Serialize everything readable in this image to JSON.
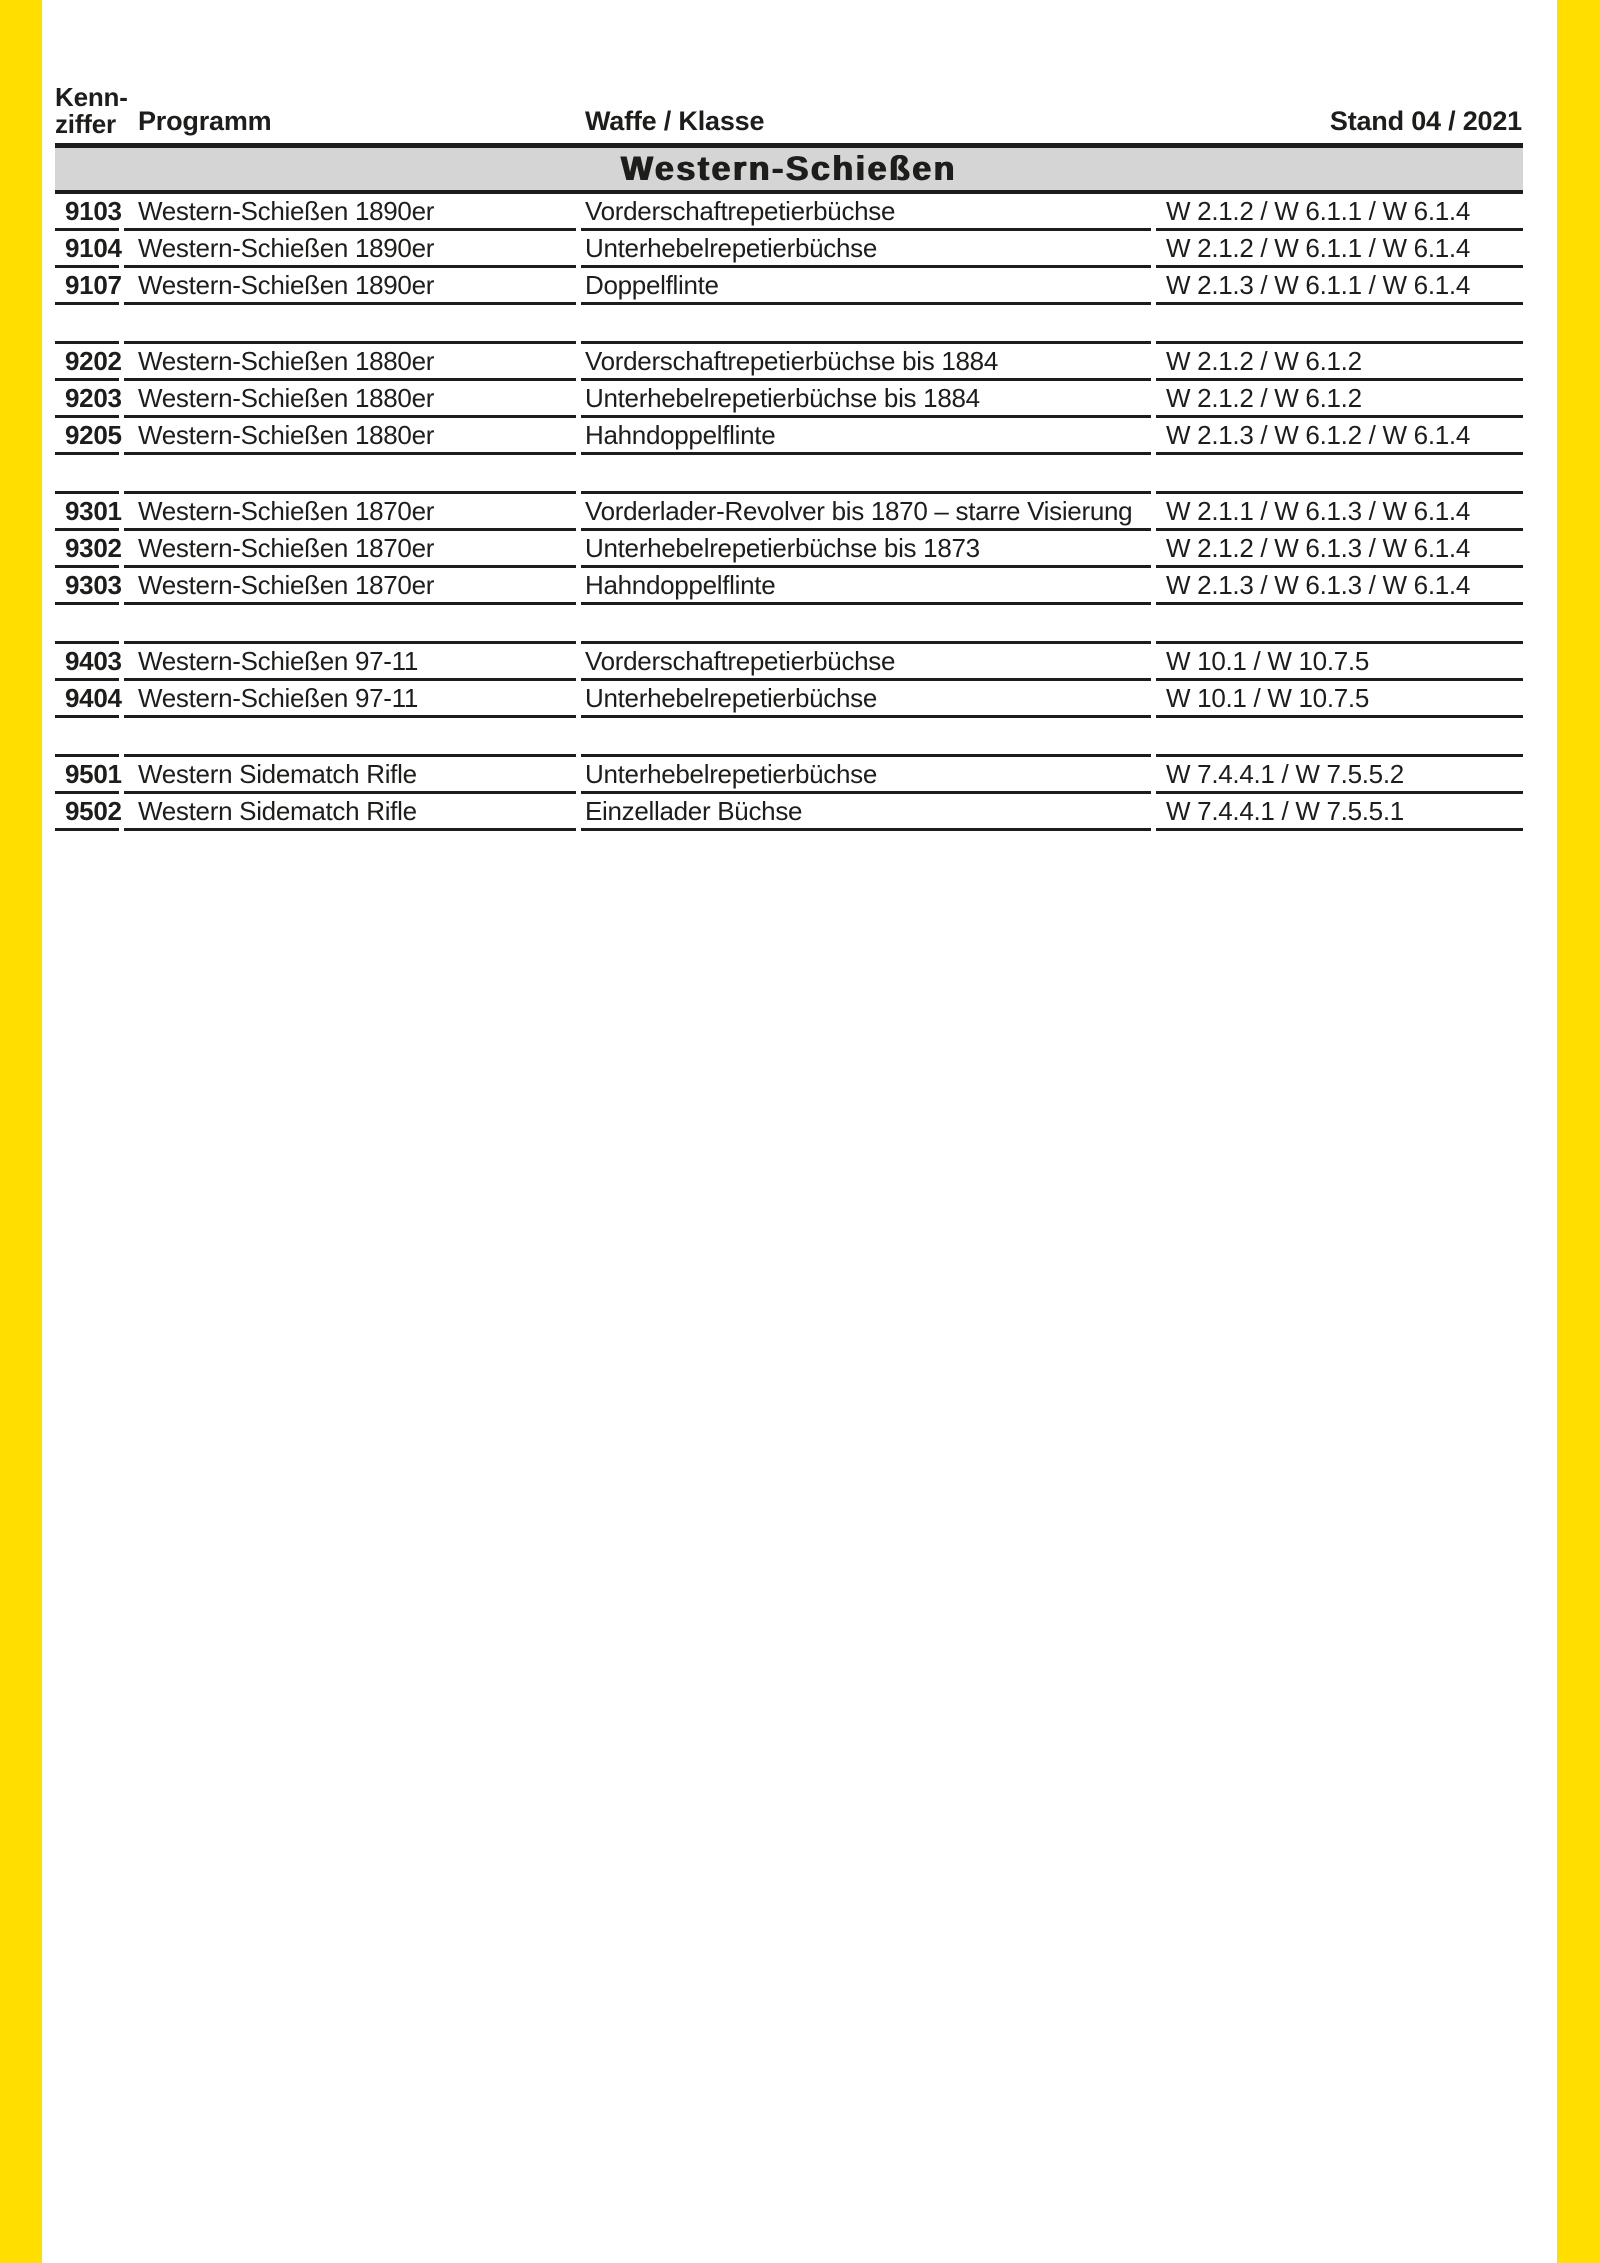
{
  "page": {
    "colors": {
      "stripe_yellow": "#ffde00",
      "banner_gray": "#d5d5d5",
      "text_black": "#1d1d1b",
      "background": "#ffffff"
    }
  },
  "header": {
    "kennziffer_line1": "Kenn-",
    "kennziffer_line2": "ziffer",
    "programm": "Programm",
    "waffe_klasse": "Waffe / Klasse",
    "stand": "Stand 04 / 2021"
  },
  "section": {
    "title": "Western-Schießen"
  },
  "table": {
    "groups": [
      {
        "rows": [
          {
            "kennziffer": "9103",
            "programm": "Western-Schießen 1890er",
            "waffe": "Vorderschaftrepetierbüchse",
            "klasse": "W 2.1.2 / W 6.1.1 / W 6.1.4"
          },
          {
            "kennziffer": "9104",
            "programm": "Western-Schießen 1890er",
            "waffe": "Unterhebelrepetierbüchse",
            "klasse": "W 2.1.2 / W 6.1.1 / W 6.1.4"
          },
          {
            "kennziffer": "9107",
            "programm": "Western-Schießen 1890er",
            "waffe": "Doppelflinte",
            "klasse": "W 2.1.3 / W 6.1.1 / W 6.1.4"
          }
        ]
      },
      {
        "rows": [
          {
            "kennziffer": "9202",
            "programm": "Western-Schießen 1880er",
            "waffe": "Vorderschaftrepetierbüchse bis 1884",
            "klasse": "W 2.1.2 / W 6.1.2"
          },
          {
            "kennziffer": "9203",
            "programm": "Western-Schießen 1880er",
            "waffe": "Unterhebelrepetierbüchse bis 1884",
            "klasse": "W 2.1.2 / W 6.1.2"
          },
          {
            "kennziffer": "9205",
            "programm": "Western-Schießen 1880er",
            "waffe": "Hahndoppelflinte",
            "klasse": "W 2.1.3 / W 6.1.2 / W 6.1.4"
          }
        ]
      },
      {
        "rows": [
          {
            "kennziffer": "9301",
            "programm": "Western-Schießen 1870er",
            "waffe": "Vorderlader-Revolver bis 1870 – starre Visierung",
            "klasse": "W 2.1.1 / W 6.1.3 / W 6.1.4"
          },
          {
            "kennziffer": "9302",
            "programm": "Western-Schießen 1870er",
            "waffe": "Unterhebelrepetierbüchse bis 1873",
            "klasse": "W 2.1.2 / W 6.1.3 / W 6.1.4"
          },
          {
            "kennziffer": "9303",
            "programm": "Western-Schießen 1870er",
            "waffe": "Hahndoppelflinte",
            "klasse": "W 2.1.3 / W 6.1.3 / W 6.1.4"
          }
        ]
      },
      {
        "rows": [
          {
            "kennziffer": "9403",
            "programm": "Western-Schießen 97-11",
            "waffe": "Vorderschaftrepetierbüchse",
            "klasse": "W 10.1 / W 10.7.5"
          },
          {
            "kennziffer": "9404",
            "programm": "Western-Schießen 97-11",
            "waffe": "Unterhebelrepetierbüchse",
            "klasse": "W 10.1 / W 10.7.5"
          }
        ]
      },
      {
        "rows": [
          {
            "kennziffer": "9501",
            "programm": "Western Sidematch Rifle",
            "waffe": "Unterhebelrepetierbüchse",
            "klasse": "W 7.4.4.1 / W 7.5.5.2"
          },
          {
            "kennziffer": "9502",
            "programm": "Western Sidematch Rifle",
            "waffe": "Einzellader Büchse",
            "klasse": "W 7.4.4.1 / W 7.5.5.1"
          }
        ]
      }
    ]
  }
}
